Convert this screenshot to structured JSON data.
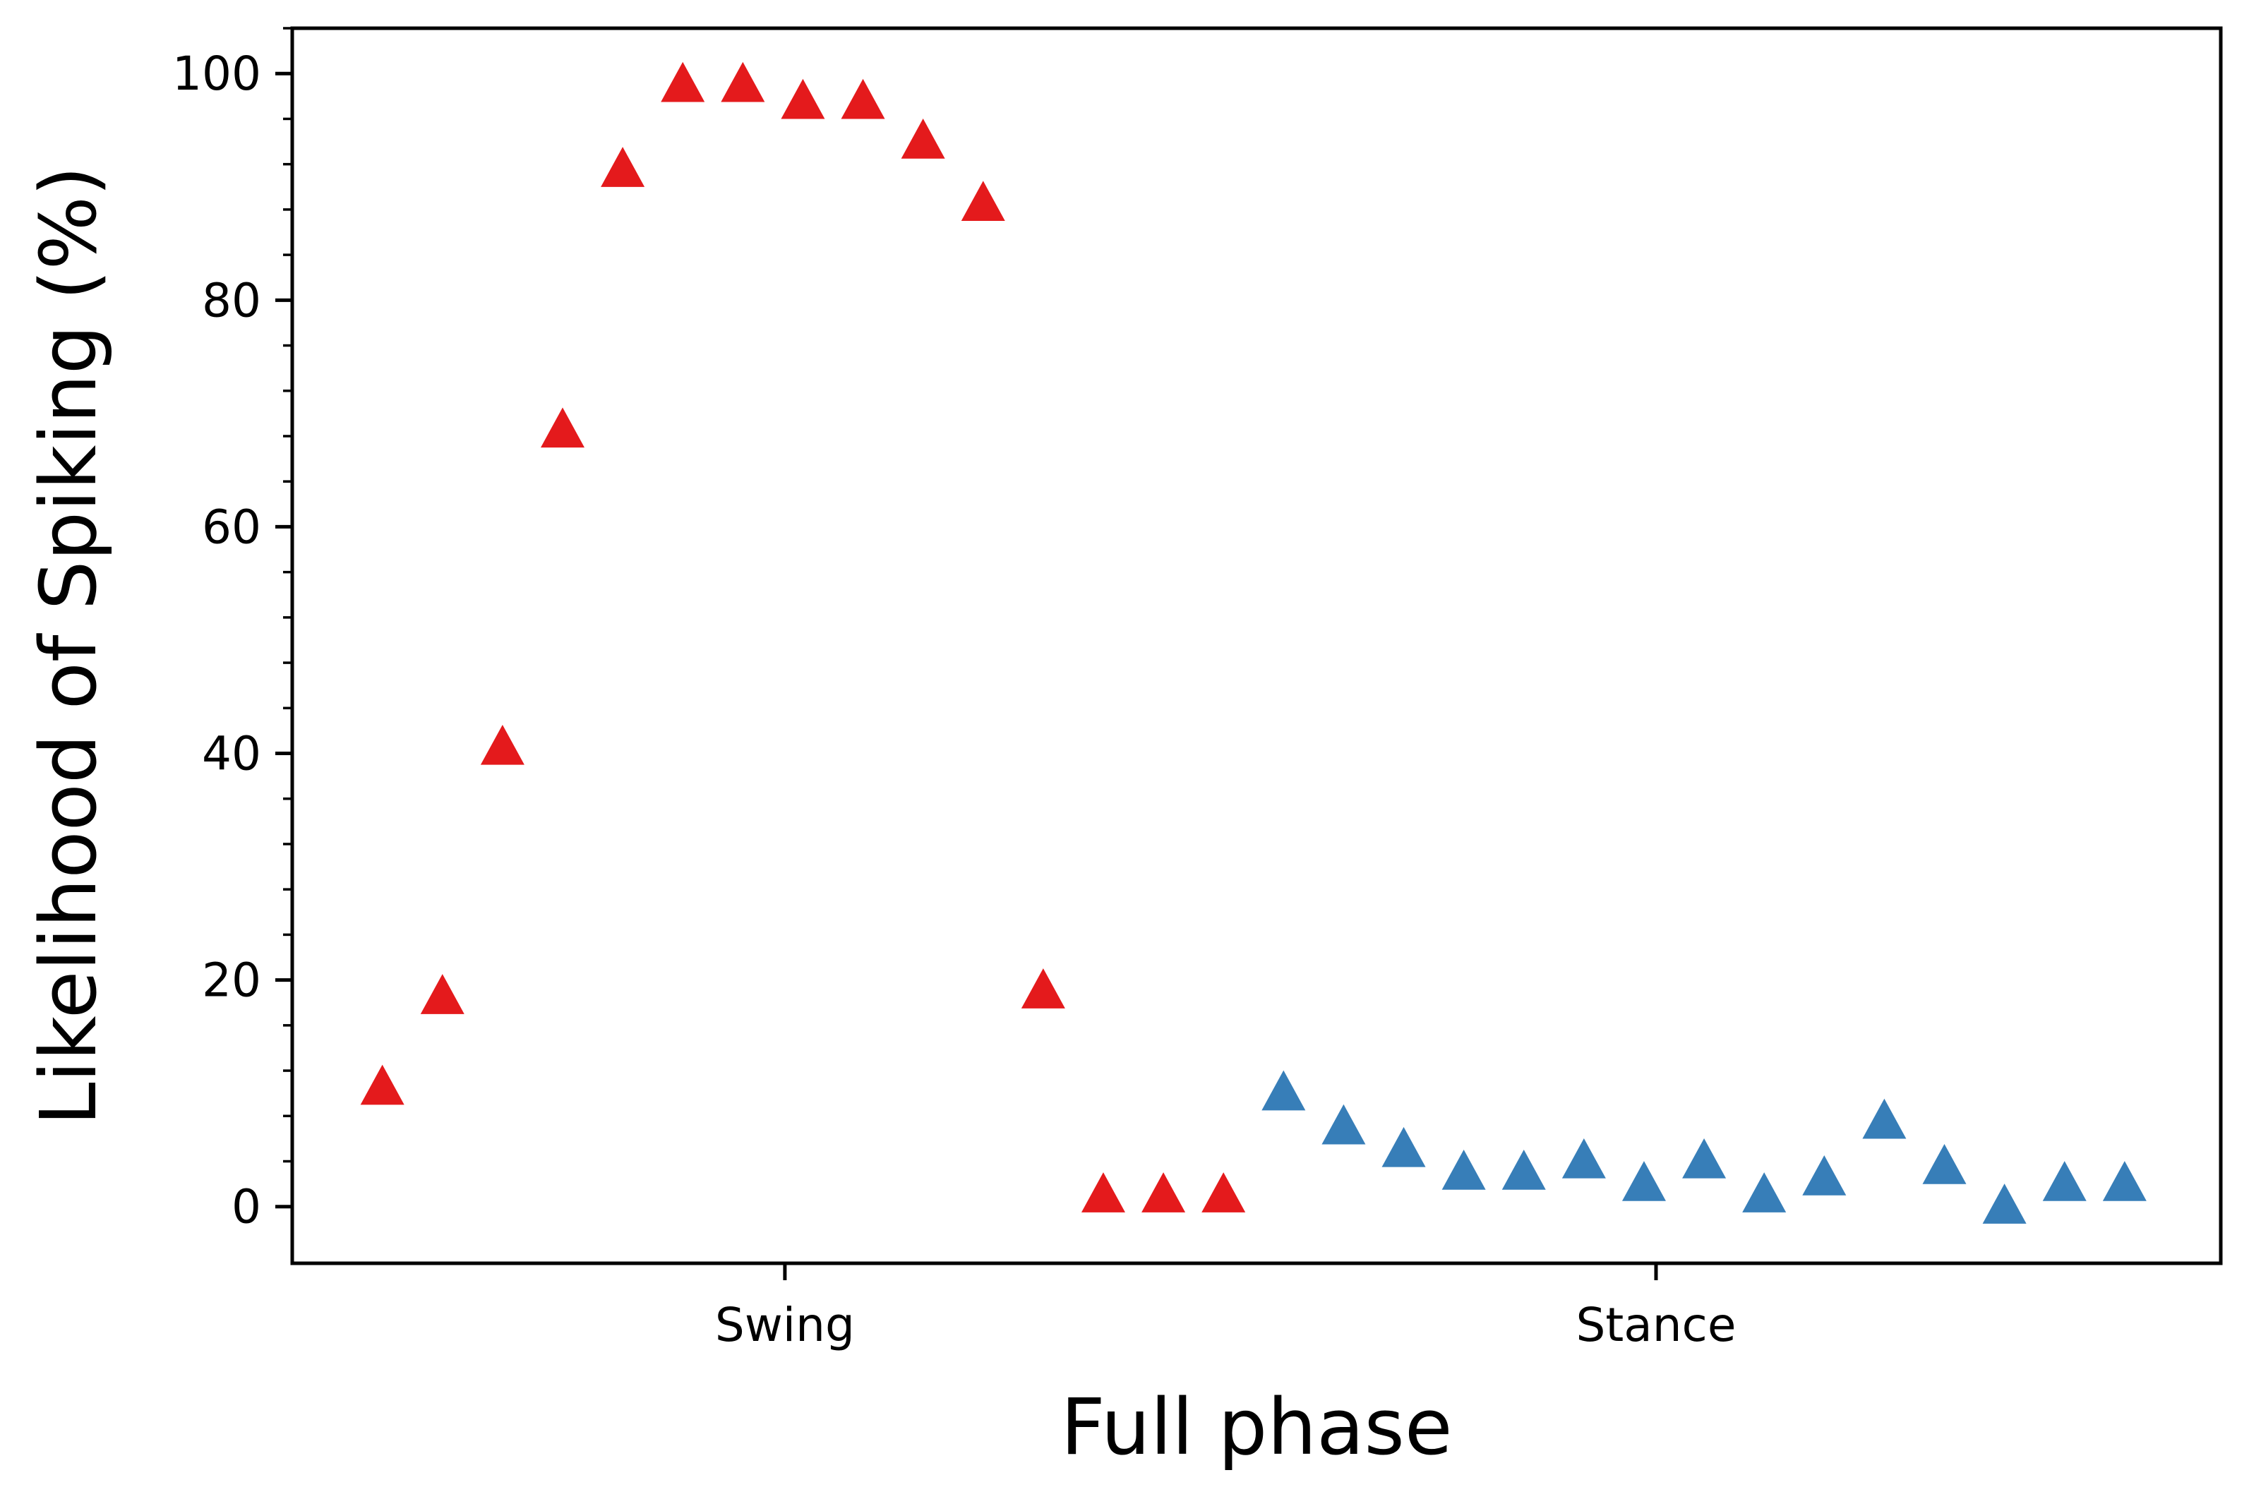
{
  "chart_data": {
    "type": "scatter",
    "title": "",
    "xlabel": "Full phase",
    "ylabel": "Likelihood of Spiking (%)",
    "ylim": [
      -5,
      104
    ],
    "y_ticks": [
      0,
      20,
      40,
      60,
      80,
      100
    ],
    "x_ticks": [
      {
        "label": "Swing",
        "x": 7.7
      },
      {
        "label": "Stance",
        "x": 22.2
      }
    ],
    "marker": "triangle-up",
    "legend": "none",
    "grid": false,
    "colors": {
      "swing": "#e41a1c",
      "stance": "#377eb8"
    },
    "series": [
      {
        "color_key": "swing",
        "x": [
          1,
          2,
          3,
          4,
          5,
          6,
          7,
          8,
          9,
          10,
          11,
          12,
          13,
          14,
          15
        ],
        "y": [
          10.5,
          18.5,
          40.5,
          68.5,
          91.5,
          99,
          99,
          97.5,
          97.5,
          94,
          88.5,
          19,
          1,
          1,
          1
        ]
      },
      {
        "color_key": "stance",
        "x": [
          16,
          17,
          18,
          19,
          20,
          21,
          22,
          23,
          24,
          25,
          26,
          27,
          28,
          29,
          30
        ],
        "y": [
          10,
          7,
          5,
          3,
          3,
          4,
          2,
          4,
          1,
          2.5,
          7.5,
          3.5,
          0,
          2,
          2
        ]
      }
    ]
  }
}
